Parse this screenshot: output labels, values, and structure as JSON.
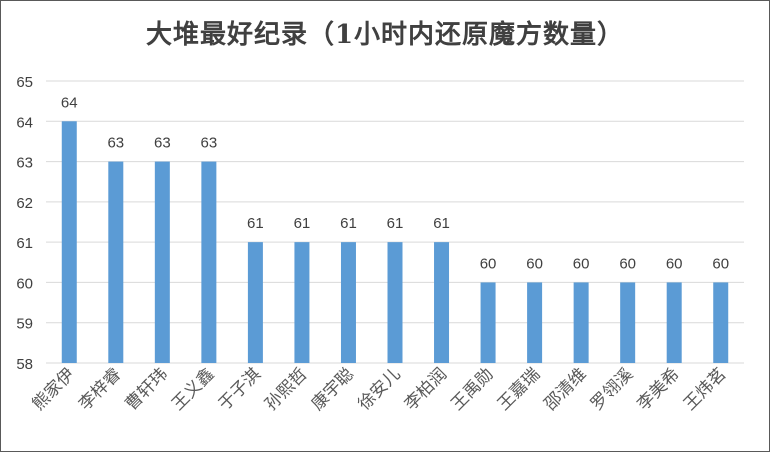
{
  "chart_data": {
    "type": "bar",
    "title": "大堆最好纪录（1小时内还原魔方数量）",
    "categories": [
      "熊家伊",
      "李梓睿",
      "曹轩玮",
      "王义鑫",
      "于子淇",
      "孙熙哲",
      "康宇聪",
      "徐安儿",
      "李柏润",
      "王禹勋",
      "王嘉瑞",
      "邵清维",
      "罗翎溪",
      "李美希",
      "王炜茗"
    ],
    "values": [
      64,
      63,
      63,
      63,
      61,
      61,
      61,
      61,
      61,
      60,
      60,
      60,
      60,
      60,
      60
    ],
    "ylim": [
      58,
      65
    ],
    "yticks": [
      58,
      59,
      60,
      61,
      62,
      63,
      64,
      65
    ],
    "xlabel": "",
    "ylabel": "",
    "grid": true,
    "legend": "none",
    "bar_color": "#5B9BD5",
    "grid_color": "#D9D9D9",
    "label_color": "#404040"
  }
}
